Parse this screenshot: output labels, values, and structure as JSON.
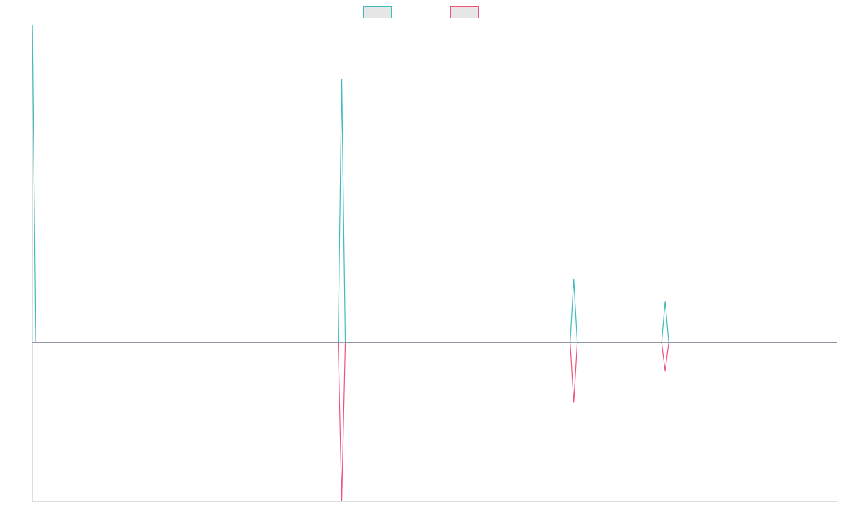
{
  "chart_data": {
    "type": "line",
    "title": "",
    "xlabel": "",
    "ylabel": "",
    "grid": false,
    "legend_position": "top-center",
    "x_count": 230,
    "xlim": [
      0,
      229
    ],
    "ylim": [
      -0.5,
      1.0
    ],
    "series": [
      {
        "color": "#3dbdbd",
        "fill": "#e6e6e6",
        "points": [
          {
            "x": 0,
            "y": 1.0
          },
          {
            "x": 1,
            "y": 0
          },
          {
            "x": 87,
            "y": 0
          },
          {
            "x": 88,
            "y": 0.83
          },
          {
            "x": 89,
            "y": 0
          },
          {
            "x": 153,
            "y": 0
          },
          {
            "x": 154,
            "y": 0.2
          },
          {
            "x": 155,
            "y": 0
          },
          {
            "x": 179,
            "y": 0
          },
          {
            "x": 180,
            "y": 0.13
          },
          {
            "x": 181,
            "y": 0
          },
          {
            "x": 229,
            "y": 0
          }
        ]
      },
      {
        "color": "#f0527a",
        "fill": "#e6e6e6",
        "points": [
          {
            "x": 0,
            "y": 0
          },
          {
            "x": 87,
            "y": 0
          },
          {
            "x": 88,
            "y": -0.5
          },
          {
            "x": 89,
            "y": 0
          },
          {
            "x": 153,
            "y": 0
          },
          {
            "x": 154,
            "y": -0.19
          },
          {
            "x": 155,
            "y": 0
          },
          {
            "x": 179,
            "y": 0
          },
          {
            "x": 180,
            "y": -0.09
          },
          {
            "x": 181,
            "y": 0
          },
          {
            "x": 229,
            "y": 0
          }
        ]
      }
    ]
  },
  "colors": {
    "axis": "#dddddd",
    "baseline": "#8a9aa8",
    "background": "#ffffff"
  }
}
